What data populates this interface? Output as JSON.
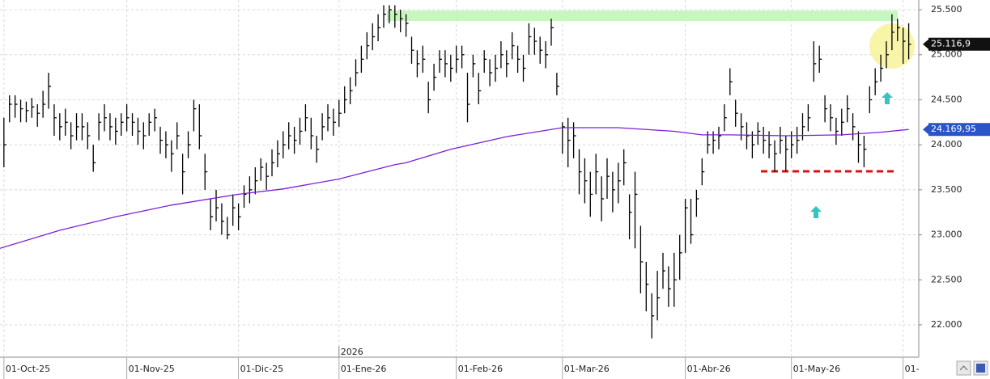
{
  "chart_data": {
    "type": "ohlc",
    "xlim": [
      -0.7,
      163.8
    ],
    "ylim": [
      21659,
      25608
    ],
    "grid": true,
    "yticks": [
      {
        "value": 22000,
        "label": "22.000"
      },
      {
        "value": 22500,
        "label": "22.500"
      },
      {
        "value": 23000,
        "label": "23.000"
      },
      {
        "value": 23500,
        "label": "23.500"
      },
      {
        "value": 24000,
        "label": "24.000"
      },
      {
        "value": 24500,
        "label": "24.500"
      },
      {
        "value": 25000,
        "label": "25.000"
      },
      {
        "value": 25500,
        "label": "25.500"
      }
    ],
    "xticks": [
      {
        "value": 0,
        "label": "01-Oct-25"
      },
      {
        "value": 22,
        "label": "01-Nov-25"
      },
      {
        "value": 42,
        "label": "01-Dic-25"
      },
      {
        "value": 60,
        "label": "01-Ene-26"
      },
      {
        "value": 81,
        "label": "01-Feb-26"
      },
      {
        "value": 100,
        "label": "01-Mar-26"
      },
      {
        "value": 122,
        "label": "01-Abr-26"
      },
      {
        "value": 141,
        "label": "01-May-26"
      },
      {
        "value": 161,
        "label": "01-"
      }
    ],
    "year_marker": {
      "value": 60,
      "label": "2026"
    },
    "price": {
      "color": "#000000",
      "high": [
        24300,
        24550,
        24550,
        24500,
        24480,
        24520,
        24450,
        24600,
        24800,
        24450,
        24350,
        24400,
        24250,
        24350,
        24350,
        24250,
        24000,
        24350,
        24450,
        24350,
        24300,
        24350,
        24450,
        24350,
        24300,
        24250,
        24350,
        24400,
        24200,
        24150,
        24050,
        24250,
        23900,
        24150,
        24500,
        24450,
        23900,
        23400,
        23500,
        23350,
        23200,
        23450,
        23350,
        23550,
        23650,
        23750,
        23850,
        23800,
        23950,
        24050,
        24150,
        24250,
        24200,
        24300,
        24450,
        24300,
        24100,
        24350,
        24450,
        24400,
        24500,
        24650,
        24750,
        24950,
        25100,
        25250,
        25350,
        25450,
        25550,
        25550,
        25550,
        25500,
        25450,
        25200,
        25050,
        25100,
        24700,
        24900,
        25050,
        25050,
        25000,
        25100,
        25100,
        24800,
        25000,
        24800,
        25050,
        24950,
        25000,
        25150,
        25050,
        25250,
        25100,
        25000,
        25350,
        25300,
        25200,
        25150,
        25400,
        24800,
        24250,
        24300,
        24250,
        23950,
        23850,
        23700,
        23900,
        23650,
        23850,
        23700,
        23800,
        23950,
        23450,
        23700,
        23100,
        22700,
        22350,
        22600,
        22800,
        22650,
        22800,
        23000,
        23400,
        23400,
        23500,
        23850,
        24150,
        24150,
        24200,
        24450,
        24850,
        24500,
        24350,
        24250,
        24150,
        24250,
        24200,
        24150,
        24050,
        24200,
        24100,
        24150,
        24200,
        24350,
        24450,
        25150,
        25100,
        24550,
        24450,
        24300,
        24400,
        24550,
        24350,
        24150,
        24100,
        24650,
        24850,
        25000,
        25150,
        25450,
        25400,
        25300,
        25350
      ],
      "low": [
        23750,
        24250,
        24300,
        24250,
        24250,
        24300,
        24200,
        24300,
        24400,
        24100,
        24050,
        24100,
        23950,
        24050,
        24050,
        23950,
        23700,
        24050,
        24150,
        24050,
        24000,
        24100,
        24150,
        24100,
        24000,
        23950,
        24100,
        24150,
        23900,
        23850,
        23700,
        23950,
        23450,
        23850,
        24150,
        23950,
        23500,
        23050,
        23150,
        23000,
        22950,
        23100,
        23050,
        23300,
        23350,
        23450,
        23600,
        23500,
        23650,
        23750,
        23850,
        23950,
        23900,
        24000,
        24150,
        23950,
        23800,
        24050,
        24150,
        24100,
        24200,
        24350,
        24450,
        24650,
        24800,
        24950,
        25050,
        25150,
        25300,
        25350,
        25300,
        25250,
        25200,
        24900,
        24750,
        24800,
        24350,
        24600,
        24800,
        24750,
        24700,
        24800,
        24850,
        24250,
        24750,
        24450,
        24800,
        24650,
        24700,
        24850,
        24750,
        24950,
        24800,
        24700,
        25000,
        25000,
        24900,
        24850,
        25100,
        24550,
        23900,
        23750,
        23850,
        23450,
        23350,
        23200,
        23450,
        23150,
        23400,
        23250,
        23350,
        23550,
        22950,
        22850,
        22350,
        22150,
        21850,
        22050,
        22400,
        22200,
        22200,
        22500,
        22800,
        22900,
        23200,
        23550,
        23900,
        23900,
        23950,
        24150,
        24550,
        24200,
        24050,
        23950,
        23850,
        24000,
        23900,
        23850,
        23700,
        23900,
        23700,
        23850,
        23900,
        24050,
        24150,
        24700,
        24800,
        24250,
        24150,
        24000,
        24100,
        24250,
        24050,
        23800,
        23750,
        24350,
        24550,
        24700,
        24850,
        25050,
        25150,
        24900,
        24950
      ],
      "close": [
        24000,
        24450,
        24450,
        24400,
        24380,
        24420,
        24350,
        24450,
        24650,
        24300,
        24200,
        24250,
        24100,
        24200,
        24200,
        24100,
        23800,
        24250,
        24300,
        24200,
        24150,
        24250,
        24300,
        24250,
        24150,
        24100,
        24250,
        24300,
        24050,
        24000,
        23900,
        24100,
        23700,
        24000,
        24400,
        24100,
        23700,
        23200,
        23300,
        23150,
        23000,
        23300,
        23200,
        23450,
        23500,
        23600,
        23750,
        23650,
        23800,
        23900,
        24000,
        24100,
        24050,
        24150,
        24300,
        24100,
        23950,
        24200,
        24300,
        24250,
        24350,
        24500,
        24600,
        24800,
        24950,
        25100,
        25200,
        25300,
        25450,
        25500,
        25450,
        25400,
        25350,
        25050,
        24900,
        24950,
        24500,
        24750,
        24950,
        24900,
        24850,
        24950,
        25000,
        24450,
        24900,
        24600,
        24950,
        24800,
        24850,
        25000,
        24900,
        25100,
        24950,
        24850,
        25200,
        25150,
        25050,
        25000,
        25300,
        24650,
        24200,
        24050,
        24100,
        23700,
        23600,
        23450,
        23700,
        23400,
        23650,
        23500,
        23600,
        23800,
        23250,
        23450,
        22700,
        22450,
        22100,
        22300,
        22600,
        22400,
        22500,
        22800,
        23300,
        23000,
        23400,
        23700,
        24000,
        24050,
        24100,
        24300,
        24700,
        24350,
        24200,
        24100,
        24000,
        24150,
        24050,
        24000,
        23900,
        24050,
        23950,
        24000,
        24050,
        24200,
        24300,
        24900,
        24950,
        24400,
        24300,
        24150,
        24250,
        24400,
        24200,
        24000,
        23950,
        24500,
        24700,
        24850,
        25000,
        25250,
        25300,
        25150,
        25116.9
      ]
    },
    "moving_average": {
      "color": "#7b1fd6",
      "x": [
        -0.7,
        10,
        20,
        30,
        42,
        50,
        60,
        70,
        72,
        80,
        90,
        100,
        110,
        120,
        125,
        130,
        140,
        150,
        157,
        162
      ],
      "values": [
        22850,
        23050,
        23200,
        23330,
        23450,
        23510,
        23620,
        23780,
        23800,
        23950,
        24090,
        24190,
        24190,
        24150,
        24110,
        24110,
        24100,
        24110,
        24140,
        24169.95
      ]
    },
    "last_price": {
      "value": 25116.9,
      "label": "25.116,9"
    },
    "ma_label": {
      "value": 24169.95,
      "label": "24.169,95"
    }
  }
}
